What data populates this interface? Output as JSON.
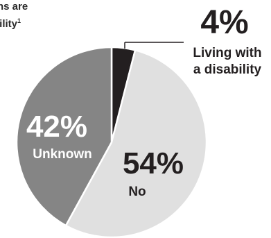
{
  "header": {
    "title_line1": "ns are",
    "title_line2": "bility",
    "footnote_mark": "1"
  },
  "colors": {
    "living_with_disability": "#231f20",
    "no": "#e0e0e0",
    "unknown": "#858585",
    "outline": "#ffffff",
    "label_dark": "#231f20",
    "label_light": "#ffffff"
  },
  "chart_data": {
    "type": "pie",
    "categories": [
      "Living with a disability",
      "No",
      "Unknown"
    ],
    "values": [
      4,
      54,
      42
    ],
    "labels": {
      "living": {
        "pct": "4%",
        "line1": "Living with",
        "line2": "a disability"
      },
      "no": {
        "pct": "54%",
        "name": "No"
      },
      "unknown": {
        "pct": "42%",
        "name": "Unknown"
      }
    }
  }
}
